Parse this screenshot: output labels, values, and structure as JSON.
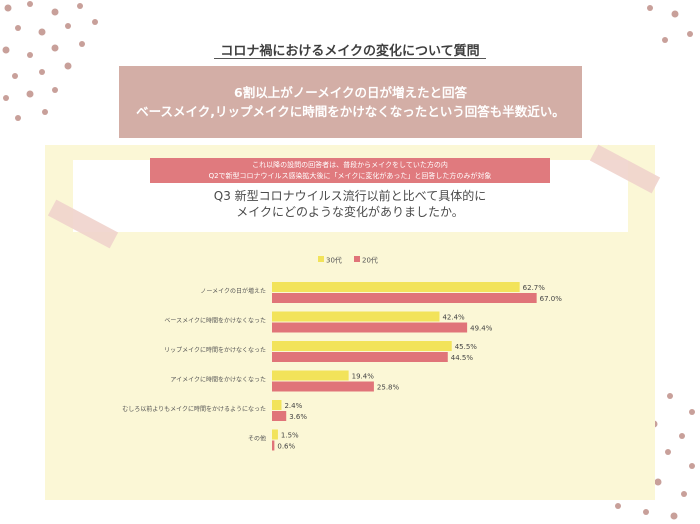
{
  "page_title": "コロナ禍におけるメイクの変化について質問",
  "summary": {
    "line1": "6割以上がノーメイクの日が増えたと回答",
    "line2": "ベースメイク,リップメイクに時間をかけなくなったという回答も半数近い。"
  },
  "note": {
    "line1": "これ以降の設問の回答者は、普段からメイクをしていた方の内",
    "line2": "Q2で新型コロナウイルス感染拡大後に「メイクに変化があった」と回答した方のみが対象"
  },
  "question": {
    "line1": "Q3 新型コロナウイルス流行以前と比べて具体的に",
    "line2": "メイクにどのような変化がありましたか。"
  },
  "colors": {
    "series_30s": "#f2e35a",
    "series_20s": "#e07479",
    "dots": "#c8a09a",
    "summary_bg": "#d3aea6",
    "panel_bg": "#fbf7d6"
  },
  "chart_data": {
    "type": "bar",
    "orientation": "horizontal",
    "categories": [
      "ノーメイクの日が増えた",
      "ベースメイクに時間をかけなくなった",
      "リップメイクに時間をかけなくなった",
      "アイメイクに時間をかけなくなった",
      "むしろ以前よりもメイクに時間をかけるようになった",
      "その他"
    ],
    "series": [
      {
        "name": "30代",
        "values": [
          62.7,
          42.4,
          45.5,
          19.4,
          2.4,
          1.5
        ]
      },
      {
        "name": "20代",
        "values": [
          67.0,
          49.4,
          44.5,
          25.8,
          3.6,
          0.6
        ]
      }
    ],
    "value_suffix": "%",
    "xlim": [
      0,
      100
    ],
    "grid": false,
    "legend_position": "top-center",
    "title": "",
    "xlabel": "",
    "ylabel": ""
  }
}
